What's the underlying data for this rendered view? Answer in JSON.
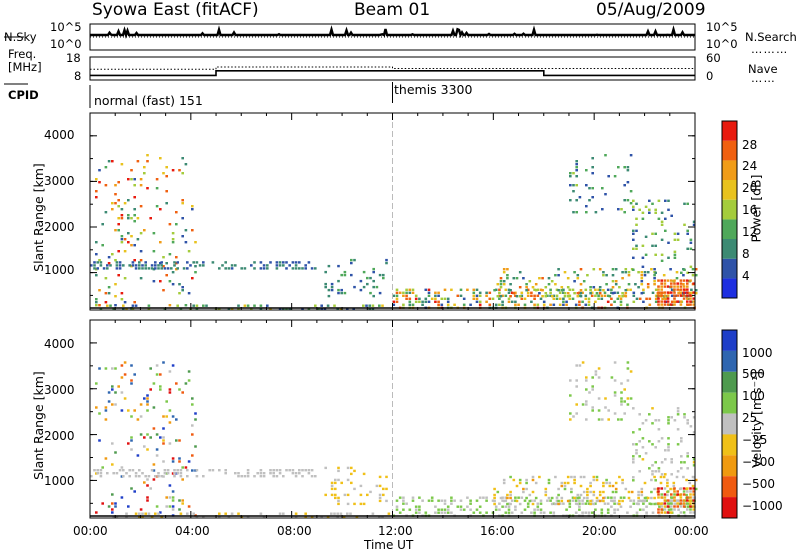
{
  "header": {
    "station": "Syowa East (fitACF)",
    "beam": "Beam 01",
    "date": "05/Aug/2009"
  },
  "aux_panels": {
    "nsky_label": "N.Sky",
    "nsearch_label": "N.Search",
    "freq_label_1": "Freq.",
    "freq_label_2": "[MHz]",
    "nave_label": "Nave",
    "cpid_label": "CPID",
    "nsky_ticks": [
      "10^5",
      "10^0"
    ],
    "nsearch_ticks": [
      "10^5",
      "10^0"
    ],
    "freq_ticks": [
      "18",
      "8"
    ],
    "nave_ticks": [
      "60",
      "0"
    ],
    "cpid_modes": [
      {
        "name": "normal (fast) 151",
        "start_hour": 0,
        "end_hour": 12
      },
      {
        "name": "themis 3300",
        "start_hour": 12,
        "end_hour": 24
      }
    ]
  },
  "x_axis": {
    "label": "Time UT",
    "ticks": [
      "00:00",
      "04:00",
      "08:00",
      "12:00",
      "16:00",
      "20:00",
      "00:00"
    ]
  },
  "power_panel": {
    "ylabel": "Slant Range [km]",
    "yticks": [
      "1000",
      "2000",
      "3000",
      "4000"
    ],
    "colorbar_label": "Power [dB]",
    "colorbar_ticks": [
      "4",
      "8",
      "12",
      "16",
      "20",
      "24",
      "28"
    ]
  },
  "velocity_panel": {
    "ylabel": "Slant Range [km]",
    "yticks": [
      "1000",
      "2000",
      "3000",
      "4000"
    ],
    "colorbar_label": "Velocity [m s⁻¹]",
    "colorbar_ticks": [
      "1000",
      "500",
      "100",
      "25",
      "−25",
      "−100",
      "−500",
      "−1000"
    ]
  },
  "colors": {
    "power_scale": [
      "#1e2fe0",
      "#2f53a8",
      "#3c8a73",
      "#4fa85a",
      "#a4cc3c",
      "#e8c21e",
      "#f09c18",
      "#f06010",
      "#e81a0e"
    ],
    "velocity_scale": [
      "#1e3ec8",
      "#2f66b0",
      "#4e9a4e",
      "#7cc84a",
      "#c0c0c0",
      "#f0c018",
      "#f09a10",
      "#f05a10",
      "#e01010"
    ]
  },
  "chart_data": [
    {
      "type": "line",
      "title": "N.Sky / N.Search",
      "x_range_hours": [
        0,
        24
      ],
      "y_scale": "log",
      "y_range": [
        1,
        100000
      ],
      "series": [
        {
          "name": "N.Sky",
          "approx_level": 20000
        },
        {
          "name": "N.Search",
          "approx_level": 10000
        }
      ]
    },
    {
      "type": "line",
      "title": "Freq. / Nave",
      "x_range_hours": [
        0,
        24
      ],
      "y_range_mhz": [
        8,
        18
      ],
      "series": [
        {
          "name": "Freq. [MHz]",
          "x": [
            0,
            5,
            5,
            18,
            18,
            24
          ],
          "y": [
            10,
            10,
            12,
            12,
            10,
            10
          ]
        },
        {
          "name": "Nave",
          "x": [
            0,
            5,
            5,
            12,
            12,
            24
          ],
          "y": [
            28,
            28,
            34,
            34,
            30,
            30
          ]
        }
      ]
    },
    {
      "type": "heatmap",
      "title": "Power [dB]",
      "x_range_hours": [
        0,
        24
      ],
      "y_range_km": [
        180,
        4500
      ],
      "value_range": [
        0,
        30
      ],
      "regions": [
        {
          "x0": 0.2,
          "x1": 4.2,
          "y0": 200,
          "y1": 3600,
          "density": 0.1,
          "v0": 4,
          "v1": 30
        },
        {
          "x0": 0.0,
          "x1": 9.0,
          "y0": 1100,
          "y1": 1250,
          "density": 0.45,
          "v0": 4,
          "v1": 10
        },
        {
          "x0": 0.0,
          "x1": 12.0,
          "y0": 200,
          "y1": 300,
          "density": 0.35,
          "v0": 4,
          "v1": 18
        },
        {
          "x0": 9.3,
          "x1": 11.8,
          "y0": 500,
          "y1": 1300,
          "density": 0.18,
          "v0": 4,
          "v1": 12
        },
        {
          "x0": 12.0,
          "x1": 24.0,
          "y0": 200,
          "y1": 650,
          "density": 0.4,
          "v0": 4,
          "v1": 28
        },
        {
          "x0": 16.0,
          "x1": 24.0,
          "y0": 500,
          "y1": 1100,
          "density": 0.25,
          "v0": 4,
          "v1": 24
        },
        {
          "x0": 19.0,
          "x1": 21.5,
          "y0": 2300,
          "y1": 3600,
          "density": 0.12,
          "v0": 4,
          "v1": 14
        },
        {
          "x0": 21.5,
          "x1": 24.0,
          "y0": 1000,
          "y1": 2600,
          "density": 0.14,
          "v0": 4,
          "v1": 16
        },
        {
          "x0": 22.5,
          "x1": 24.0,
          "y0": 300,
          "y1": 850,
          "density": 0.7,
          "v0": 22,
          "v1": 30
        }
      ]
    },
    {
      "type": "heatmap",
      "title": "Velocity [m s⁻¹]",
      "x_range_hours": [
        0,
        24
      ],
      "y_range_km": [
        180,
        4500
      ],
      "value_range": [
        -1000,
        1000
      ],
      "regions": [
        {
          "x0": 0.2,
          "x1": 4.2,
          "y0": 200,
          "y1": 3600,
          "density": 0.1,
          "v0": -1000,
          "v1": 1000
        },
        {
          "x0": 0.0,
          "x1": 9.0,
          "y0": 1100,
          "y1": 1250,
          "density": 0.45,
          "v0": -20,
          "v1": 20
        },
        {
          "x0": 0.0,
          "x1": 12.0,
          "y0": 200,
          "y1": 300,
          "density": 0.3,
          "v0": -200,
          "v1": 100
        },
        {
          "x0": 9.3,
          "x1": 11.8,
          "y0": 500,
          "y1": 1300,
          "density": 0.18,
          "v0": -300,
          "v1": -50
        },
        {
          "x0": 12.0,
          "x1": 24.0,
          "y0": 200,
          "y1": 650,
          "density": 0.38,
          "v0": -100,
          "v1": 300
        },
        {
          "x0": 16.0,
          "x1": 24.0,
          "y0": 500,
          "y1": 1100,
          "density": 0.25,
          "v0": -400,
          "v1": 200
        },
        {
          "x0": 19.0,
          "x1": 21.5,
          "y0": 2300,
          "y1": 3600,
          "density": 0.12,
          "v0": -200,
          "v1": 300
        },
        {
          "x0": 21.5,
          "x1": 24.0,
          "y0": 1000,
          "y1": 2600,
          "density": 0.14,
          "v0": -150,
          "v1": 250
        },
        {
          "x0": 22.5,
          "x1": 24.0,
          "y0": 300,
          "y1": 850,
          "density": 0.7,
          "v0": -1000,
          "v1": 200
        }
      ]
    }
  ]
}
